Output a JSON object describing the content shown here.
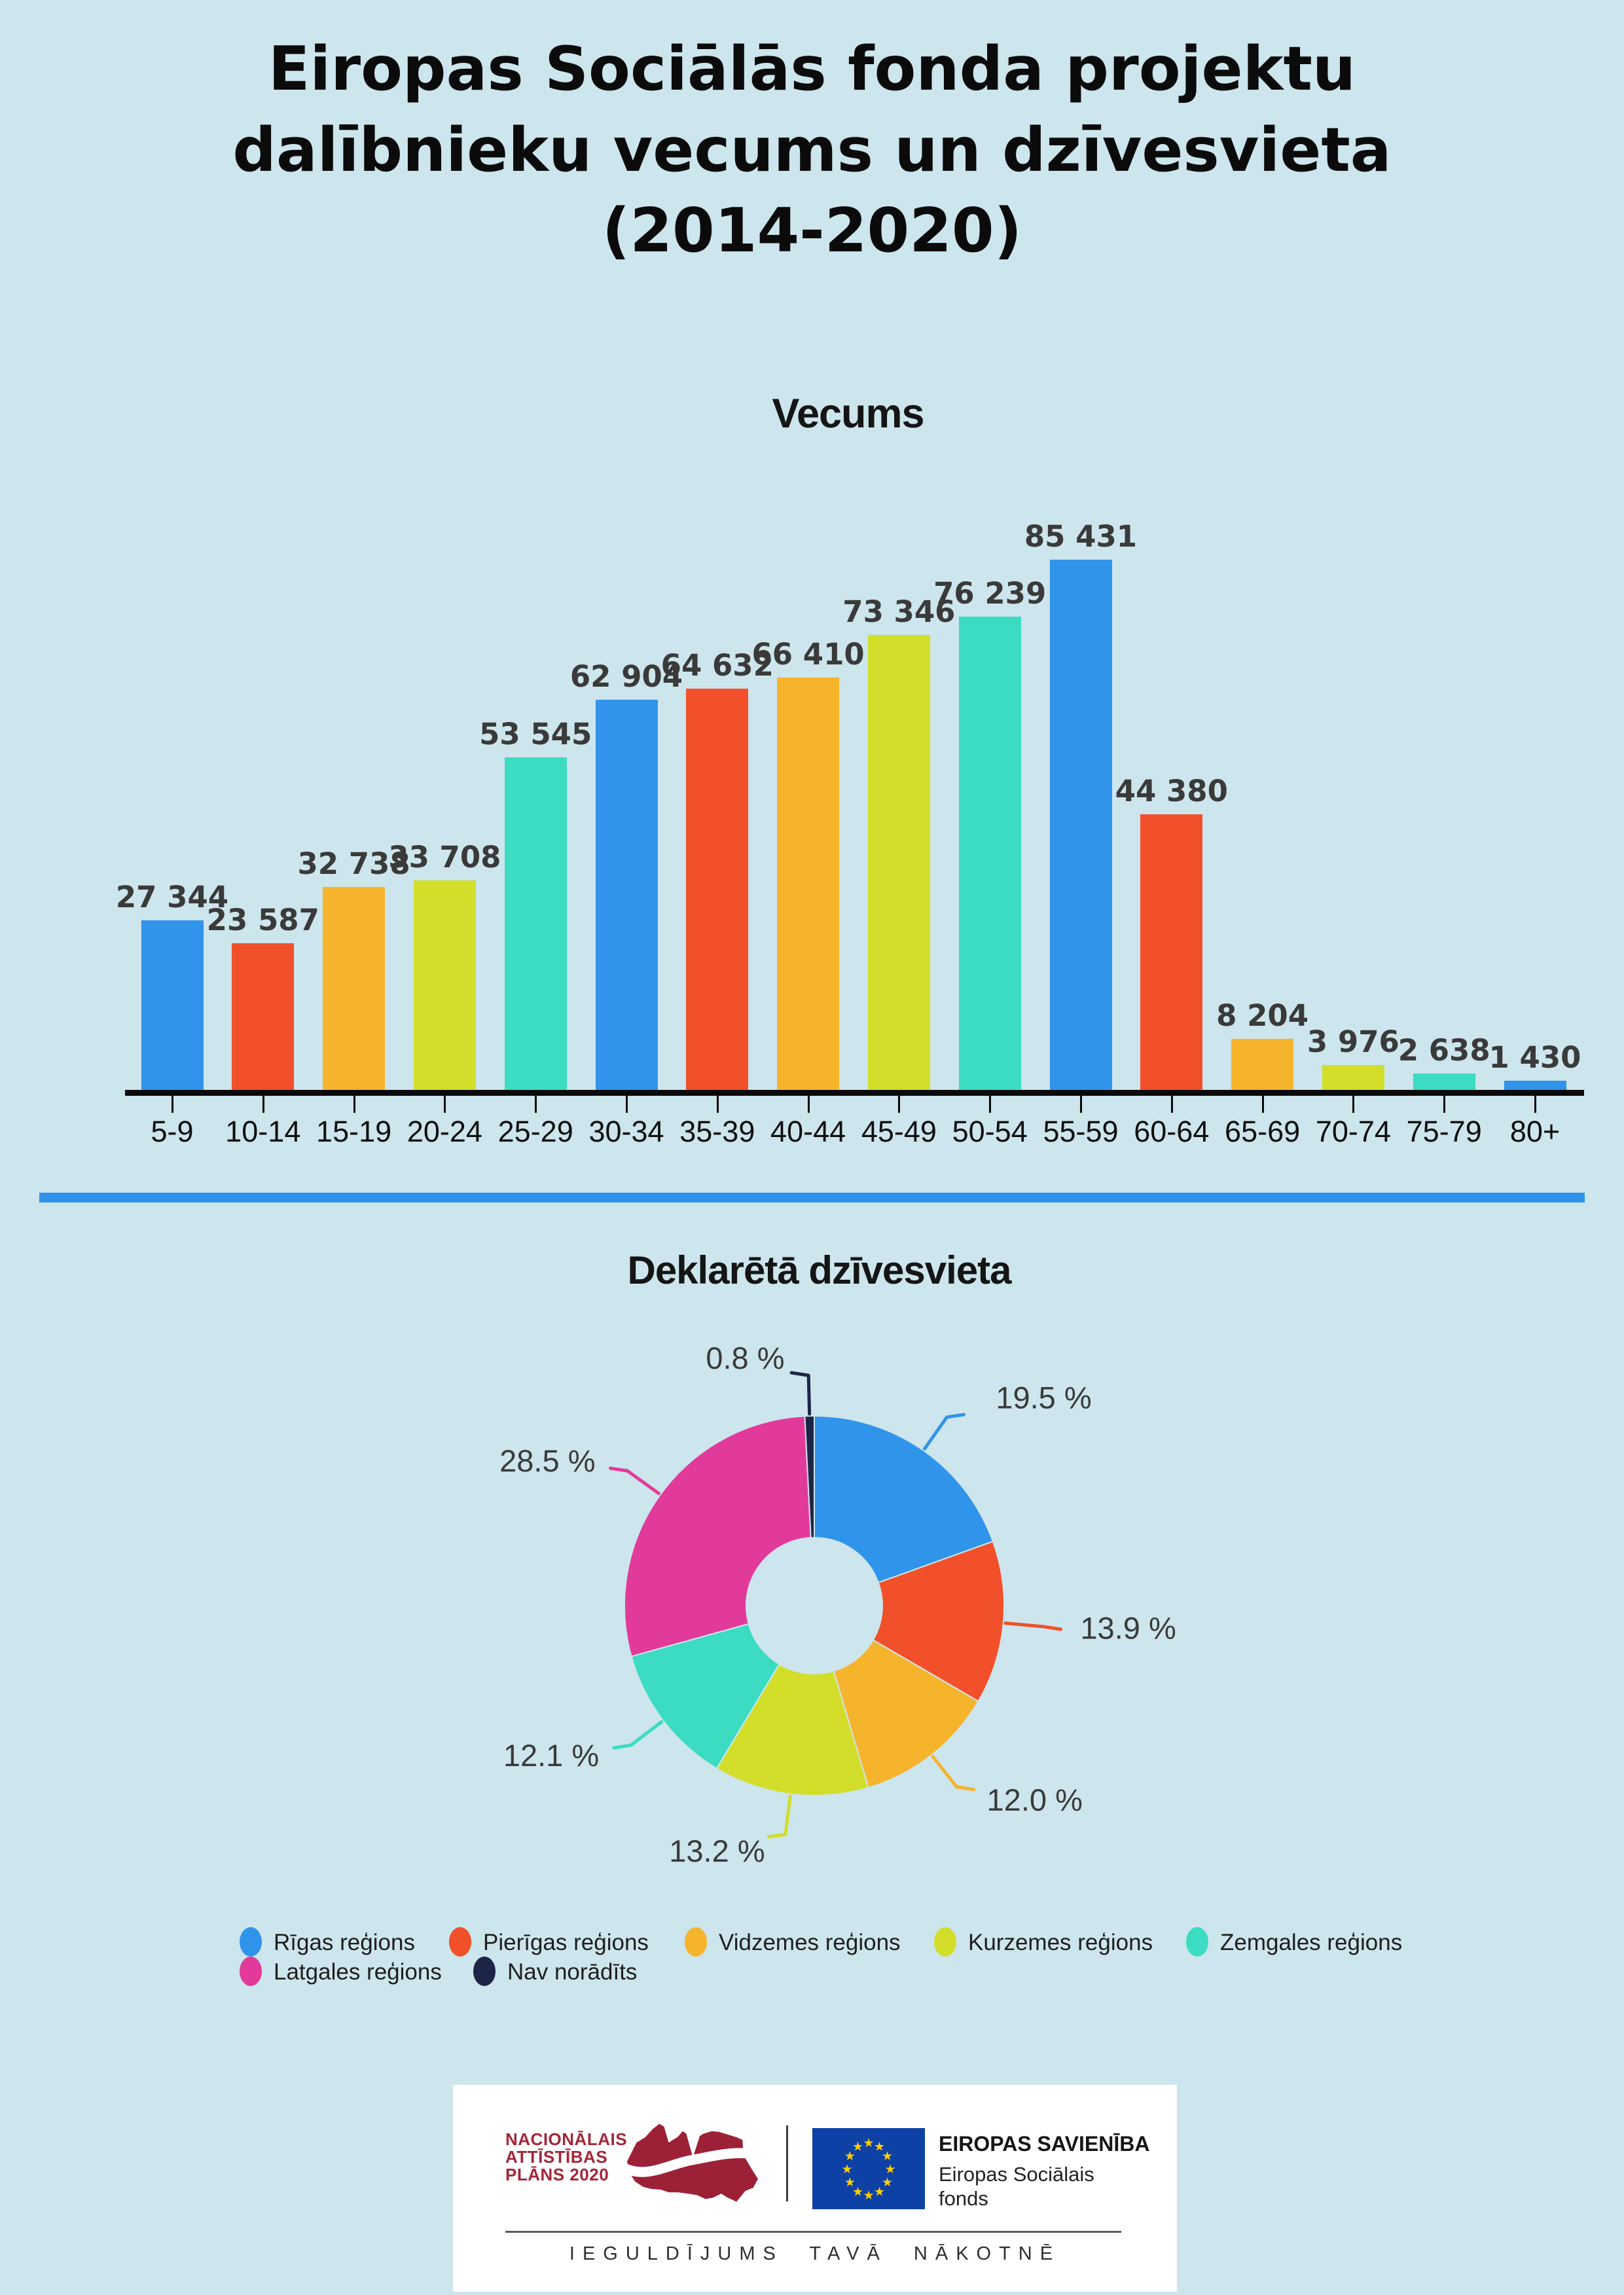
{
  "page": {
    "background": "#CDE5EC",
    "title_lines": [
      "Eiropas Sociālās fonda projektu",
      "dalībnieku vecums un dzīvesvieta",
      "(2014-2020)"
    ],
    "divider_color": "#2E92EA"
  },
  "chart_data": [
    {
      "type": "bar",
      "title": "Vecums",
      "categories": [
        "5-9",
        "10-14",
        "15-19",
        "20-24",
        "25-29",
        "30-34",
        "35-39",
        "40-44",
        "45-49",
        "50-54",
        "55-59",
        "60-64",
        "65-69",
        "70-74",
        "75-79",
        "80+"
      ],
      "values": [
        27344,
        23587,
        32738,
        33708,
        53545,
        62904,
        64632,
        66410,
        73346,
        76239,
        85431,
        44380,
        8204,
        3976,
        2638,
        1430
      ],
      "value_labels": [
        "27 344",
        "23 587",
        "32 738",
        "33 708",
        "53 545",
        "62 904",
        "64 632",
        "66 410",
        "73 346",
        "76 239",
        "85 431",
        "44 380",
        "8 204",
        "3 976",
        "2 638",
        "1 430"
      ],
      "color_cycle": [
        "#3094EA",
        "#F1502A",
        "#F6B42C",
        "#D2DE2A",
        "#3BDCC1"
      ],
      "xlabel": "",
      "ylabel": "",
      "ylim": [
        0,
        85431
      ],
      "grid": false
    },
    {
      "type": "pie",
      "title": "Deklarētā dzīvesvieta",
      "donut": true,
      "direction": "clockwise",
      "start_angle_deg": 0,
      "legend_position": "bottom",
      "slices": [
        {
          "label": "Rīgas reģions",
          "value": 19.5,
          "display": "19.5 %",
          "color": "#3094EA"
        },
        {
          "label": "Pierīgas reģions",
          "value": 13.9,
          "display": "13.9 %",
          "color": "#F1502A"
        },
        {
          "label": "Vidzemes reģions",
          "value": 12.0,
          "display": "12.0 %",
          "color": "#F6B42C"
        },
        {
          "label": "Kurzemes reģions",
          "value": 13.2,
          "display": "13.2 %",
          "color": "#D2DE2A"
        },
        {
          "label": "Zemgales reģions",
          "value": 12.1,
          "display": "12.1 %",
          "color": "#3BDCC1"
        },
        {
          "label": "Latgales reģions",
          "value": 28.5,
          "display": "28.5 %",
          "color": "#E23A9A"
        },
        {
          "label": "Nav norādīts",
          "value": 0.8,
          "display": "0.8 %",
          "color": "#1D2547"
        }
      ]
    }
  ],
  "footer": {
    "nap_lines": [
      "NACIONĀLAIS",
      "ATTĪSTĪBAS",
      "PLĀNS 2020"
    ],
    "nap_color": "#A32638",
    "map_color": "#9C2137",
    "eu_flag_color": "#0E41A5",
    "eu_star_color": "#FFCC00",
    "eu_title": "EIROPAS SAVIENĪBA",
    "eu_subtitle_lines": [
      "Eiropas Sociālais",
      "fonds"
    ],
    "tagline": "IEGULDĪJUMS TAVĀ NĀKOTNĒ"
  }
}
